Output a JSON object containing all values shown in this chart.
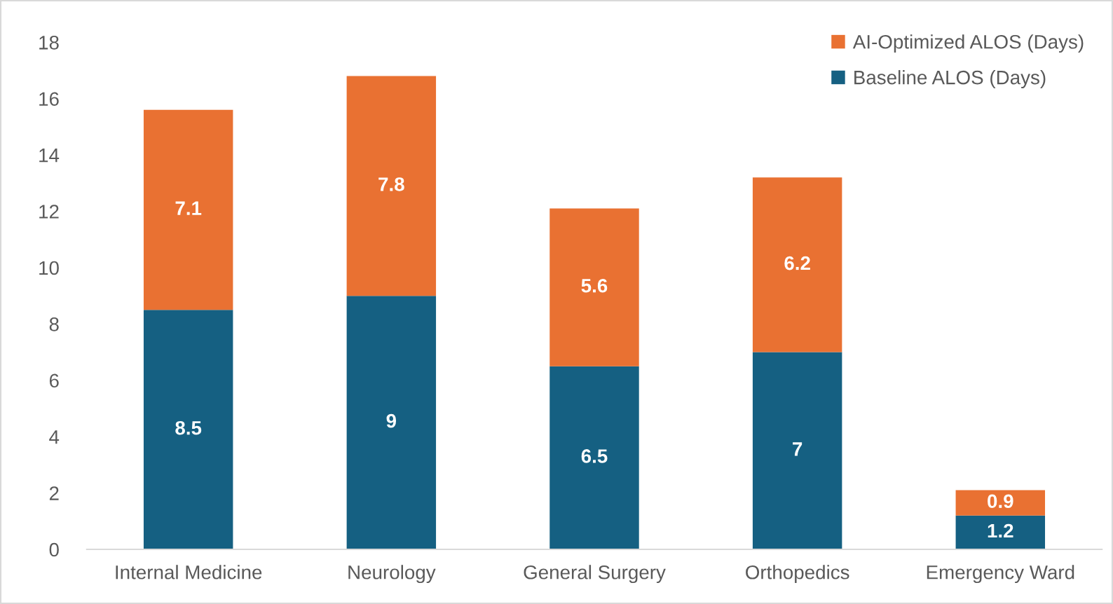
{
  "chart_data": {
    "type": "bar",
    "stacked": true,
    "categories": [
      "Internal Medicine",
      "Neurology",
      "General Surgery",
      "Orthopedics",
      "Emergency Ward"
    ],
    "series": [
      {
        "name": "Baseline ALOS (Days)",
        "color": "#156082",
        "values": [
          8.5,
          9,
          6.5,
          7,
          1.2
        ]
      },
      {
        "name": "AI-Optimized ALOS (Days)",
        "color": "#e97132",
        "values": [
          7.1,
          7.8,
          5.6,
          6.2,
          0.9
        ]
      }
    ],
    "ylim": [
      0,
      18
    ],
    "yticks": [
      0,
      2,
      4,
      6,
      8,
      10,
      12,
      14,
      16,
      18
    ],
    "data_labels": true,
    "legend": "top right",
    "grid": false
  }
}
